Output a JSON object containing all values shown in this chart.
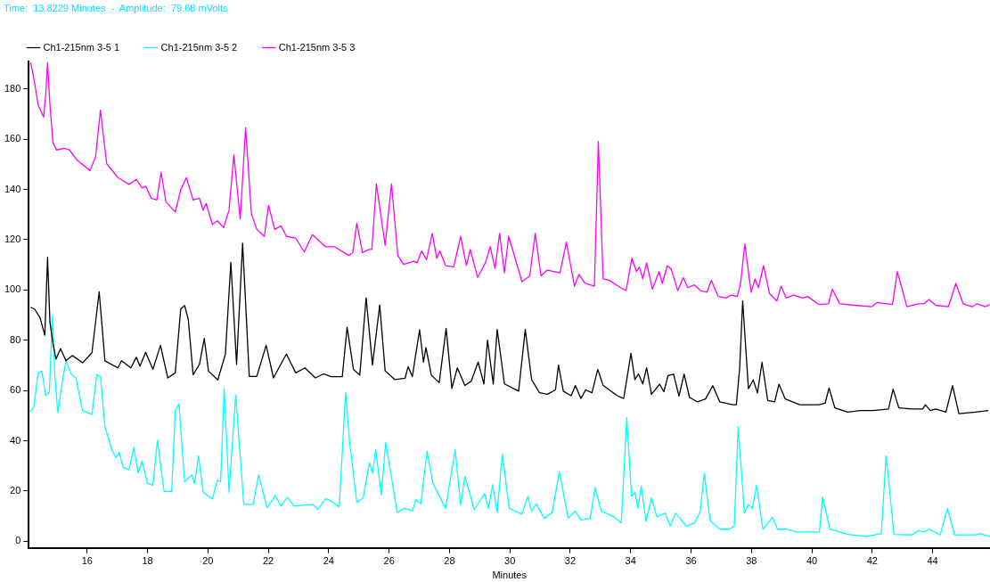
{
  "chart_data": {
    "type": "line",
    "xlabel": "Minutes",
    "annotations": [
      "Time:  13.8229 Minutes  -  Amplitude:  79.68 mVolts"
    ],
    "xlim": [
      14.07,
      45.9
    ],
    "xticks": [
      16,
      18,
      20,
      22,
      24,
      26,
      28,
      30,
      32,
      34,
      36,
      38,
      40,
      42,
      44
    ],
    "ylim": [
      -2.6,
      190.9
    ],
    "yticks": [
      0,
      20,
      40,
      60,
      80,
      100,
      120,
      140,
      160,
      180
    ],
    "legend": "top left",
    "grid": false,
    "series": [
      {
        "name": "Ch1-215nm 3-5 1",
        "color": "#000000",
        "x": [
          14.13,
          14.26,
          14.44,
          14.6,
          14.69,
          14.77,
          14.87,
          14.97,
          15.12,
          15.3,
          15.51,
          15.85,
          16.16,
          16.4,
          16.59,
          17.02,
          17.14,
          17.45,
          17.63,
          17.75,
          17.94,
          18.18,
          18.43,
          18.67,
          18.92,
          19.1,
          19.23,
          19.35,
          19.51,
          19.72,
          19.88,
          20.02,
          20.33,
          20.58,
          20.76,
          20.95,
          21.15,
          21.37,
          21.62,
          21.93,
          22.17,
          22.6,
          22.91,
          23.21,
          23.56,
          23.83,
          24.08,
          24.45,
          24.61,
          24.82,
          25.03,
          25.24,
          25.45,
          25.69,
          25.87,
          26.19,
          26.53,
          26.63,
          26.77,
          27.01,
          27.14,
          27.22,
          27.4,
          27.66,
          27.89,
          28.08,
          28.26,
          28.51,
          28.72,
          28.95,
          29.14,
          29.26,
          29.45,
          29.58,
          29.82,
          30.29,
          30.51,
          30.72,
          30.98,
          31.24,
          31.51,
          31.61,
          31.77,
          32.03,
          32.17,
          32.35,
          32.51,
          32.72,
          32.91,
          33.09,
          33.56,
          33.77,
          34.01,
          34.14,
          34.26,
          34.4,
          34.53,
          34.69,
          34.96,
          35.1,
          35.24,
          35.42,
          35.6,
          35.77,
          35.95,
          36.21,
          36.48,
          36.72,
          36.95,
          37.38,
          37.5,
          37.61,
          37.71,
          37.9,
          38.06,
          38.2,
          38.35,
          38.54,
          38.77,
          38.91,
          39.12,
          39.6,
          40.23,
          40.44,
          40.57,
          40.76,
          41.19,
          41.61,
          42.03,
          42.54,
          42.69,
          42.88,
          43.3,
          43.67,
          43.76,
          43.92,
          44.1,
          44.44,
          44.66,
          44.87,
          45.42,
          45.84
        ],
        "values": [
          93.1,
          92.4,
          89,
          82,
          113,
          87,
          78.7,
          72.5,
          76.6,
          71.8,
          73.9,
          71,
          75,
          99.3,
          71.8,
          69,
          71.8,
          69,
          73.2,
          69.7,
          75.2,
          68.4,
          78,
          65,
          67,
          92.4,
          93.8,
          88.3,
          66.3,
          70.4,
          80.7,
          67.7,
          64.2,
          74.5,
          111,
          70.4,
          118.6,
          65.6,
          65.6,
          78,
          65,
          74.5,
          67,
          69,
          65,
          66.6,
          65.5,
          65.5,
          85.2,
          68.4,
          66.1,
          96.9,
          70.1,
          94,
          67.8,
          64.3,
          64.9,
          69.5,
          65.5,
          84.1,
          71.3,
          77.1,
          66.1,
          63.1,
          84.7,
          60.8,
          69,
          62,
          63.7,
          71.3,
          62.6,
          80,
          62.6,
          84.3,
          62.6,
          59.7,
          84.3,
          64.3,
          59.1,
          58.5,
          60.2,
          70.1,
          59.7,
          57.9,
          62,
          56.8,
          60.2,
          59.1,
          68.4,
          62,
          57.9,
          56.8,
          74.8,
          64.3,
          66.6,
          62.6,
          69,
          58.5,
          62.5,
          59.5,
          65.9,
          66.5,
          57.8,
          66.5,
          57.2,
          55.5,
          56.6,
          61.9,
          55.5,
          54.3,
          54.3,
          68.9,
          95.6,
          60.7,
          64.2,
          59,
          71.2,
          56,
          55.5,
          62.5,
          56.6,
          54.3,
          54.3,
          54.9,
          61,
          53.1,
          51.4,
          52,
          52,
          52.6,
          60.5,
          53.1,
          52.6,
          52.6,
          54.3,
          52,
          52.6,
          51.4,
          61.9,
          50.8,
          51.4,
          52
        ]
      },
      {
        "name": "Ch1-215nm 3-5 2",
        "color": "#00ffff",
        "x": [
          14.11,
          14.23,
          14.38,
          14.5,
          14.63,
          14.75,
          14.85,
          14.93,
          15.03,
          15.18,
          15.3,
          15.48,
          15.63,
          15.85,
          16.16,
          16.32,
          16.44,
          16.59,
          16.83,
          16.96,
          17.06,
          17.2,
          17.39,
          17.55,
          17.69,
          17.82,
          18,
          18.18,
          18.33,
          18.55,
          18.8,
          18.92,
          19.04,
          19.23,
          19.47,
          19.56,
          19.69,
          19.84,
          20.15,
          20.31,
          20.42,
          20.54,
          20.7,
          20.92,
          21.19,
          21.5,
          21.68,
          21.96,
          22.23,
          22.42,
          22.63,
          22.85,
          23.46,
          23.64,
          23.89,
          24,
          24.35,
          24.56,
          24.69,
          24.93,
          25.14,
          25.35,
          25.45,
          25.56,
          25.74,
          25.89,
          26.27,
          26.51,
          26.77,
          26.89,
          27.05,
          27.26,
          27.45,
          27.87,
          28.19,
          28.37,
          28.51,
          28.82,
          29.16,
          29.29,
          29.43,
          29.58,
          29.75,
          29.98,
          30.4,
          30.59,
          30.72,
          30.87,
          31.14,
          31.4,
          31.64,
          31.93,
          32.16,
          32.35,
          32.66,
          32.82,
          33.03,
          33.45,
          33.69,
          33.87,
          34.03,
          34.14,
          34.24,
          34.35,
          34.51,
          34.69,
          34.87,
          35.15,
          35.31,
          35.49,
          35.84,
          36.11,
          36.3,
          36.44,
          36.63,
          36.95,
          37.27,
          37.43,
          37.56,
          37.77,
          37.9,
          38.03,
          38.17,
          38.38,
          38.7,
          38.86,
          39.17,
          39.49,
          40.02,
          40.25,
          40.36,
          40.6,
          41.19,
          41.82,
          42.3,
          42.46,
          42.72,
          43.3,
          43.53,
          43.72,
          43.88,
          44.25,
          44.49,
          44.73,
          45.42,
          45.54,
          45.9
        ],
        "values": [
          51.4,
          53.2,
          67,
          67.7,
          58,
          59.4,
          89.7,
          66.3,
          51.2,
          63.5,
          71.8,
          66.3,
          64.9,
          51.9,
          50.5,
          66.3,
          65.6,
          45.7,
          36,
          33.3,
          35.4,
          29.2,
          28.5,
          37.4,
          27.1,
          31.9,
          23,
          22.3,
          40.2,
          19.8,
          19.8,
          51.9,
          54.6,
          23.7,
          26.4,
          23,
          34,
          19.5,
          16.8,
          24.3,
          23.7,
          60.8,
          19.5,
          58,
          14.7,
          14.7,
          26.4,
          13.3,
          18.2,
          14,
          17.5,
          14,
          14.7,
          12.7,
          16.8,
          16.6,
          13.7,
          59.1,
          39.9,
          15.5,
          17.2,
          31.2,
          27.1,
          36.4,
          18.4,
          39.3,
          11.4,
          13.1,
          12,
          16.6,
          14.9,
          35.8,
          23,
          13.1,
          36.4,
          14.3,
          25.9,
          12.6,
          19,
          13.1,
          22.5,
          11.4,
          34.7,
          13.1,
          10.8,
          17.8,
          12,
          14.9,
          9.1,
          11.4,
          27.7,
          9.1,
          12,
          8.5,
          9.1,
          21.3,
          12,
          9.7,
          7.3,
          49.2,
          17.8,
          19.5,
          13.1,
          21.9,
          7.9,
          17.2,
          9.7,
          11.2,
          6,
          11.2,
          6,
          7.2,
          11.8,
          27,
          8.3,
          4.8,
          4.8,
          6,
          45.6,
          11.2,
          14.7,
          13,
          22.3,
          4.8,
          9.5,
          4.8,
          4.8,
          3.7,
          3.7,
          3.7,
          17.6,
          4.8,
          2.7,
          1.9,
          3.1,
          34,
          2.7,
          2.5,
          4.2,
          3.7,
          4.8,
          2.5,
          13,
          2.5,
          2.5,
          3.1,
          1.9
        ]
      },
      {
        "name": "Ch1-215nm 3-5 3",
        "color": "#ff00ff",
        "x": [
          14.13,
          14.23,
          14.38,
          14.56,
          14.63,
          14.69,
          14.77,
          14.87,
          14.99,
          15.24,
          15.42,
          15.67,
          16.1,
          16.28,
          16.44,
          16.65,
          17.02,
          17.39,
          17.63,
          17.82,
          17.94,
          18.12,
          18.31,
          18.45,
          18.61,
          18.92,
          19.1,
          19.29,
          19.51,
          19.72,
          19.84,
          19.94,
          20.15,
          20.31,
          20.52,
          20.7,
          20.86,
          21.07,
          21.25,
          21.44,
          21.62,
          21.87,
          22.01,
          22.21,
          22.42,
          22.6,
          22.91,
          23.19,
          23.46,
          23.89,
          24.19,
          24.66,
          24.8,
          24.93,
          25.12,
          25.33,
          25.43,
          25.58,
          25.87,
          26.08,
          26.29,
          26.48,
          26.82,
          26.93,
          27.08,
          27.24,
          27.43,
          27.58,
          27.68,
          27.87,
          28.14,
          28.37,
          28.56,
          28.69,
          28.93,
          29.19,
          29.35,
          29.51,
          29.66,
          29.82,
          29.96,
          30.4,
          30.66,
          30.84,
          31.03,
          31.24,
          31.66,
          31.87,
          32.14,
          32.29,
          32.48,
          32.8,
          32.93,
          33.09,
          33.3,
          33.66,
          33.85,
          34.04,
          34.19,
          34.29,
          34.4,
          34.53,
          34.72,
          34.94,
          35.05,
          35.21,
          35.34,
          35.56,
          35.74,
          35.89,
          36.11,
          36.32,
          36.53,
          36.67,
          36.9,
          37.16,
          37.32,
          37.53,
          37.64,
          37.78,
          37.99,
          38.12,
          38.23,
          38.4,
          38.6,
          38.84,
          38.98,
          39.15,
          39.39,
          39.7,
          39.86,
          40.23,
          40.55,
          40.68,
          40.92,
          41.4,
          41.98,
          42.16,
          42.67,
          42.83,
          43.15,
          43.51,
          43.72,
          43.88,
          44.1,
          44.52,
          44.77,
          45.01,
          45.31,
          45.47,
          45.74,
          45.9
        ],
        "values": [
          190.5,
          184.6,
          173.6,
          168.8,
          177.7,
          190.5,
          173.6,
          158.5,
          155.7,
          156.4,
          155.7,
          151.6,
          147.5,
          153,
          171.5,
          150.2,
          144.7,
          142,
          144,
          140.6,
          141.3,
          136.5,
          135.8,
          146.8,
          135.1,
          131,
          139.9,
          144.7,
          135.8,
          136.5,
          131.7,
          134.4,
          126.1,
          127.5,
          124.8,
          131.7,
          153.7,
          128.2,
          164.6,
          130.3,
          124.1,
          121.3,
          133.7,
          124.1,
          125.5,
          121.3,
          120.6,
          115.1,
          122,
          117.2,
          117.2,
          113.7,
          114.9,
          126.5,
          114.9,
          116.1,
          116.1,
          142.2,
          117.8,
          142.2,
          113.7,
          110.2,
          111.4,
          110.8,
          115.5,
          112,
          122.5,
          112.6,
          115.5,
          109.7,
          109.1,
          121.3,
          109.7,
          116.1,
          105,
          110.8,
          117.2,
          108.5,
          122.5,
          106.8,
          121.3,
          103.3,
          105.6,
          122.5,
          105.6,
          107.9,
          106.8,
          119,
          101.5,
          106.2,
          102.7,
          101.5,
          159.1,
          104.4,
          103.8,
          100.9,
          99.8,
          112.6,
          107.3,
          109.1,
          104.4,
          110.8,
          100.3,
          107.3,
          102.6,
          109.6,
          108.4,
          99.7,
          104.9,
          100.9,
          102,
          99.7,
          99.1,
          103.8,
          97.4,
          96.8,
          97.9,
          97.4,
          102.6,
          118.3,
          99.1,
          104.4,
          100.9,
          109.6,
          98.5,
          95.6,
          101.4,
          96.8,
          97.9,
          96.8,
          97.4,
          94.2,
          94.5,
          100.3,
          94.5,
          93.9,
          93.3,
          95,
          94.2,
          107.3,
          93.3,
          94.5,
          94.5,
          96.2,
          93.9,
          93.3,
          102.6,
          94.5,
          93.3,
          94.5,
          93.3,
          94.2
        ]
      }
    ]
  }
}
